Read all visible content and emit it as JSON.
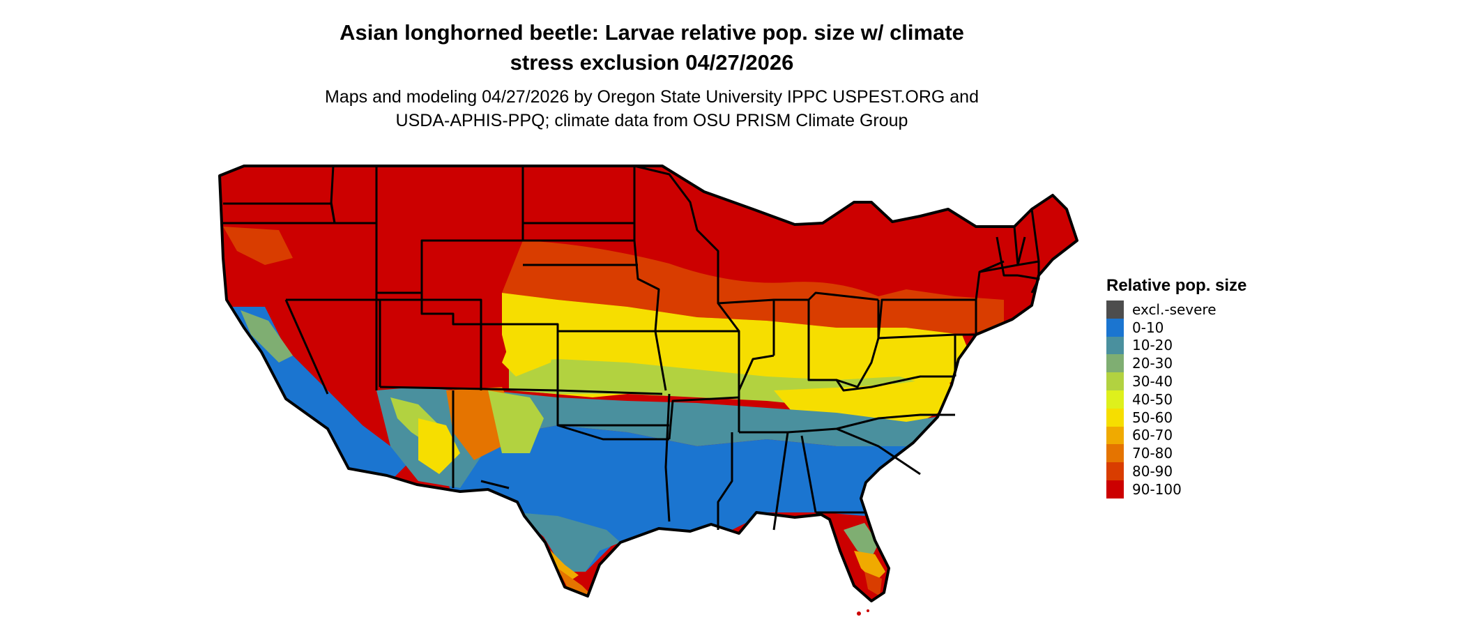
{
  "title_line1": "Asian longhorned beetle: Larvae relative pop. size w/ climate",
  "title_line2": "stress exclusion 04/27/2026",
  "subtitle_line1": "Maps and modeling 04/27/2026 by Oregon State University IPPC USPEST.ORG and",
  "subtitle_line2": "USDA-APHIS-PPQ; climate data from OSU PRISM Climate Group",
  "legend": {
    "title": "Relative pop. size",
    "items": [
      {
        "label": "excl.-severe",
        "color": "#4d4d4d"
      },
      {
        "label": "0-10",
        "color": "#1b75d0"
      },
      {
        "label": "10-20",
        "color": "#4a909e"
      },
      {
        "label": "20-30",
        "color": "#7fae72"
      },
      {
        "label": "30-40",
        "color": "#b2d240"
      },
      {
        "label": "40-50",
        "color": "#def01c"
      },
      {
        "label": "50-60",
        "color": "#f6de00"
      },
      {
        "label": "60-70",
        "color": "#f0aa00"
      },
      {
        "label": "70-80",
        "color": "#e57400"
      },
      {
        "label": "80-90",
        "color": "#d93d00"
      },
      {
        "label": "90-100",
        "color": "#cc0000"
      }
    ]
  }
}
